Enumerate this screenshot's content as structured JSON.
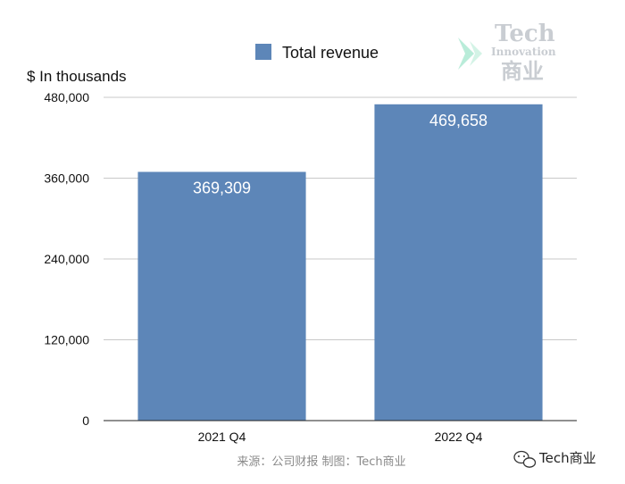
{
  "chart_data": {
    "type": "bar",
    "title": "",
    "unit_label": "$ In thousands",
    "categories": [
      "2021 Q4",
      "2022 Q4"
    ],
    "series": [
      {
        "name": "Total revenue",
        "values": [
          369309,
          469658
        ],
        "data_labels": [
          "369,309",
          "469,658"
        ],
        "color": "#5d86b8"
      }
    ],
    "ylim": [
      0,
      480000
    ],
    "yticks": [
      0,
      120000,
      240000,
      360000,
      480000
    ],
    "ytick_labels": [
      "0",
      "120,000",
      "240,000",
      "360,000",
      "480,000"
    ],
    "grid": true,
    "legend_placement": "top-center",
    "source": "来源：公司财报 制图：Tech商业"
  },
  "watermark": {
    "line1": "Tech",
    "line2": "Innovation",
    "line3": "商业"
  },
  "badge": {
    "text": "Tech商业",
    "icon": "wechat-icon"
  }
}
